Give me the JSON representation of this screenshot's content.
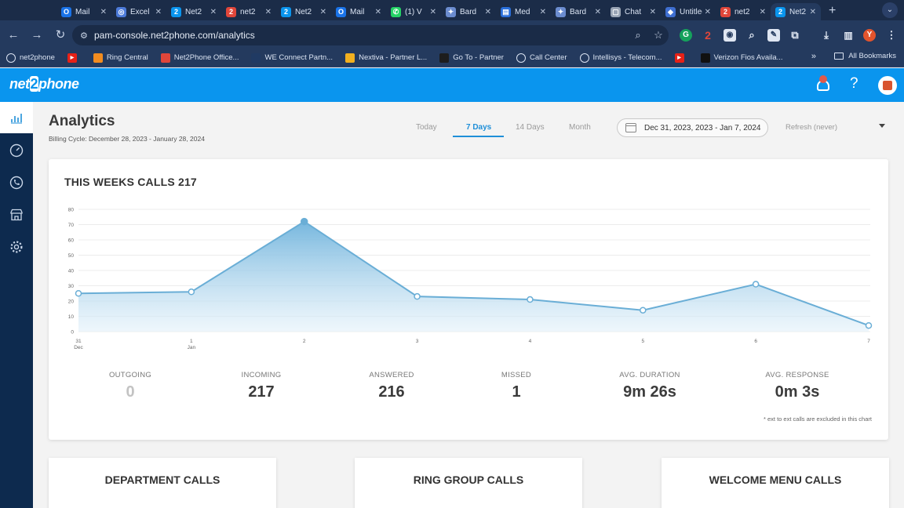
{
  "browser": {
    "tabs": [
      {
        "title": "Mail",
        "icon": "outlook-icon",
        "color": "#1a73e8",
        "glyph": "O"
      },
      {
        "title": "Excel",
        "icon": "excel-icon",
        "color": "#4c7ad8",
        "glyph": "◎"
      },
      {
        "title": "Net2",
        "icon": "net2phone-icon",
        "color": "#0a95ee",
        "glyph": "2"
      },
      {
        "title": "net2",
        "icon": "net2phone-icon",
        "color": "#e0463a",
        "glyph": "2"
      },
      {
        "title": "Net2",
        "icon": "net2phone-icon",
        "color": "#0a95ee",
        "glyph": "2"
      },
      {
        "title": "Mail",
        "icon": "outlook-icon",
        "color": "#1a73e8",
        "glyph": "O"
      },
      {
        "title": "(1) V",
        "icon": "whatsapp-icon",
        "color": "#25d366",
        "glyph": "✆"
      },
      {
        "title": "Bard",
        "icon": "bard-icon",
        "color": "#6b8ccf",
        "glyph": "✦"
      },
      {
        "title": "Med",
        "icon": "docs-icon",
        "color": "#2a6fdb",
        "glyph": "▤"
      },
      {
        "title": "Bard",
        "icon": "bard-icon",
        "color": "#6b8ccf",
        "glyph": "✦"
      },
      {
        "title": "Chat",
        "icon": "chat-icon",
        "color": "#9aa5b5",
        "glyph": "▢"
      },
      {
        "title": "Untitled",
        "icon": "shield-icon",
        "color": "#3f6fd1",
        "glyph": "◆"
      },
      {
        "title": "net2",
        "icon": "net2phone-icon",
        "color": "#e0463a",
        "glyph": "2"
      },
      {
        "title": "Net2",
        "icon": "net2phone-icon",
        "color": "#0a95ee",
        "glyph": "2"
      }
    ],
    "active_tab": 13,
    "url": "pam-console.net2phone.com/analytics",
    "bookmarks": [
      {
        "label": "net2phone",
        "icon": "globe-icon",
        "color": "#5b6b85"
      },
      {
        "label": "",
        "icon": "youtube-icon",
        "color": "#e62117"
      },
      {
        "label": "Ring Central",
        "icon": "ringcentral-icon",
        "color": "#f28c1f"
      },
      {
        "label": "Net2Phone Office...",
        "icon": "net2phone-icon",
        "color": "#e0463a"
      },
      {
        "label": "WE Connect Partn...",
        "icon": "we-connect-icon",
        "color": "#203a63"
      },
      {
        "label": "Nextiva - Partner L...",
        "icon": "nextiva-icon",
        "color": "#f2b01f"
      },
      {
        "label": "Go To - Partner",
        "icon": "goto-icon",
        "color": "#1d1d1d"
      },
      {
        "label": "Call Center",
        "icon": "globe-icon",
        "color": "#5b6b85"
      },
      {
        "label": "Intellisys - Telecom...",
        "icon": "globe-icon",
        "color": "#5b6b85"
      },
      {
        "label": "",
        "icon": "youtube-icon",
        "color": "#e62117"
      },
      {
        "label": "Verizon Fios Availa...",
        "icon": "verizon-icon",
        "color": "#111111"
      }
    ],
    "more_bookmarks": "»",
    "all_bookmarks": "All Bookmarks",
    "profile_initial": "Y"
  },
  "app": {
    "logo_pre": "net",
    "logo_two": "2",
    "logo_post": "phone",
    "help": "?"
  },
  "page": {
    "title": "Analytics",
    "billing_cycle": "Billing Cycle: December 28, 2023 - January 28, 2024",
    "range_tabs": [
      "Today",
      "7 Days",
      "14 Days",
      "Month"
    ],
    "active_range": "7 Days",
    "date_range": "Dec 31, 2023, 2023 - Jan 7, 2024",
    "refresh": "Refresh (never)"
  },
  "card": {
    "title": "THIS WEEKS CALLS 217",
    "footnote": "* ext to ext calls are excluded in this chart"
  },
  "chart_data": {
    "type": "area",
    "x": [
      "31 Dec",
      "1 Jan",
      "2",
      "3",
      "4",
      "5",
      "6",
      "7"
    ],
    "x_top": [
      "31",
      "1",
      "2",
      "3",
      "4",
      "5",
      "6",
      "7"
    ],
    "x_sub": [
      "Dec",
      "Jan",
      "",
      "",
      "",
      "",
      "",
      ""
    ],
    "values": [
      25,
      26,
      72,
      23,
      21,
      14,
      31,
      4
    ],
    "yticks": [
      0,
      10,
      20,
      30,
      40,
      50,
      60,
      70,
      80
    ],
    "ylim": [
      0,
      80
    ],
    "grid": true,
    "line_color": "#6aaed6",
    "fill_color": "#cfe6f5"
  },
  "stats": [
    {
      "label": "OUTGOING",
      "value": "0",
      "muted": true
    },
    {
      "label": "INCOMING",
      "value": "217",
      "muted": false
    },
    {
      "label": "ANSWERED",
      "value": "216",
      "muted": false
    },
    {
      "label": "MISSED",
      "value": "1",
      "muted": false
    },
    {
      "label": "AVG. DURATION",
      "value": "9m 26s",
      "muted": false
    },
    {
      "label": "AVG. RESPONSE",
      "value": "0m 3s",
      "muted": false
    }
  ],
  "bottom_cards": [
    "DEPARTMENT CALLS",
    "RING GROUP CALLS",
    "WELCOME MENU CALLS"
  ]
}
